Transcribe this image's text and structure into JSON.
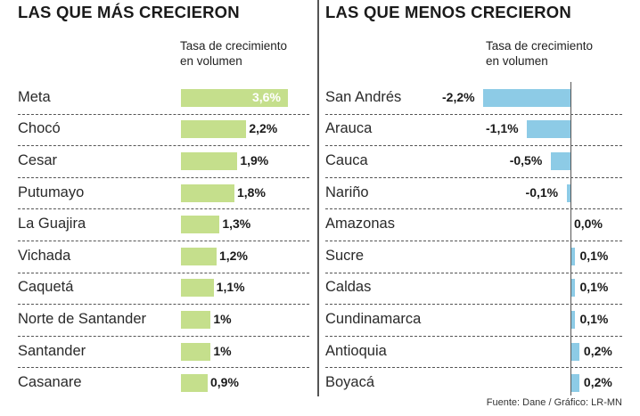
{
  "left_panel": {
    "title": "LAS QUE MÁS CRECIERON",
    "subtitle_line1": "Tasa de crecimiento",
    "subtitle_line2": "en volumen"
  },
  "right_panel": {
    "title": "LAS QUE MENOS CRECIERON",
    "subtitle_line1": "Tasa de crecimiento",
    "subtitle_line2": "en volumen"
  },
  "source": "Fuente: Dane / Gráfico: LR-MN",
  "colors": {
    "left_bar": "#c5df8c",
    "right_bar": "#8dcbe6"
  },
  "chart_data": [
    {
      "type": "bar",
      "orientation": "horizontal",
      "title": "LAS QUE MÁS CRECIERON",
      "value_header": "Tasa de crecimiento en volumen",
      "unit": "%",
      "categories": [
        "Meta",
        "Chocó",
        "Cesar",
        "Putumayo",
        "La Guajira",
        "Vichada",
        "Caquetá",
        "Norte de Santander",
        "Santander",
        "Casanare"
      ],
      "values": [
        3.6,
        2.2,
        1.9,
        1.8,
        1.3,
        1.2,
        1.1,
        1,
        1,
        0.9
      ],
      "labels": [
        "3,6%",
        "2,2%",
        "1,9%",
        "1,8%",
        "1,3%",
        "1,2%",
        "1,1%",
        "1%",
        "1%",
        "0,9%"
      ],
      "color": "#c5df8c"
    },
    {
      "type": "bar",
      "orientation": "horizontal",
      "title": "LAS QUE MENOS CRECIERON",
      "value_header": "Tasa de crecimiento en volumen",
      "unit": "%",
      "categories": [
        "San Andrés",
        "Arauca",
        "Cauca",
        "Nariño",
        "Amazonas",
        "Sucre",
        "Caldas",
        "Cundinamarca",
        "Antioquia",
        "Boyacá"
      ],
      "values": [
        -2.2,
        -1.1,
        -0.5,
        -0.1,
        0.0,
        0.1,
        0.1,
        0.1,
        0.2,
        0.2
      ],
      "labels": [
        "-2,2%",
        "-1,1%",
        "-0,5%",
        "-0,1%",
        "0,0%",
        "0,1%",
        "0,1%",
        "0,1%",
        "0,2%",
        "0,2%"
      ],
      "color": "#8dcbe6"
    }
  ]
}
